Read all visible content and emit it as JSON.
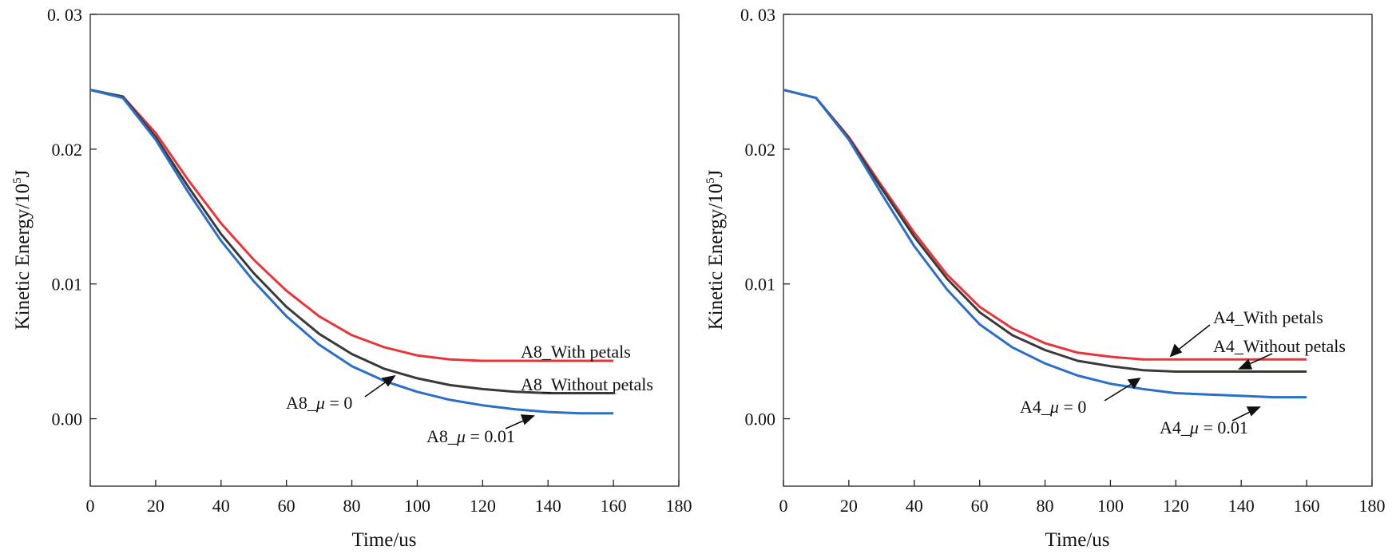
{
  "chart_data": [
    {
      "type": "line",
      "xlabel": "Time/us",
      "ylabel_base": "Kinetic Energy/10",
      "ylabel_exp": "5",
      "ylabel_unit": "J",
      "xlim": [
        0,
        180
      ],
      "ylim": [
        -0.005,
        0.03
      ],
      "xticks": [
        0,
        20,
        40,
        60,
        80,
        100,
        120,
        140,
        160,
        180
      ],
      "yticks": [
        0.0,
        0.01,
        0.02,
        0.03
      ],
      "ytick_labels": [
        "0.00",
        "0.01",
        "0.02",
        "0. 03"
      ],
      "x": [
        0,
        10,
        20,
        30,
        40,
        50,
        60,
        70,
        80,
        90,
        100,
        110,
        120,
        130,
        140,
        150,
        160
      ],
      "series": [
        {
          "name": "A8_With petals",
          "color": "#e8353a",
          "values": [
            0.0244,
            0.0239,
            0.0212,
            0.0177,
            0.0145,
            0.0118,
            0.0095,
            0.0076,
            0.0062,
            0.0053,
            0.0047,
            0.0044,
            0.0043,
            0.0043,
            0.0043,
            0.0043,
            0.0043
          ]
        },
        {
          "name": "A8_Without petals",
          "color": "#3a3a3a",
          "values": [
            0.0244,
            0.0239,
            0.0209,
            0.0172,
            0.0137,
            0.0108,
            0.0083,
            0.0063,
            0.0048,
            0.0037,
            0.003,
            0.0025,
            0.0022,
            0.002,
            0.0019,
            0.0019,
            0.0019
          ]
        },
        {
          "name": "A8_μ = 0.01",
          "color": "#2b6fc7",
          "values": [
            0.0244,
            0.0238,
            0.0207,
            0.0168,
            0.0132,
            0.0102,
            0.0076,
            0.0055,
            0.0039,
            0.0028,
            0.002,
            0.0014,
            0.001,
            0.0007,
            0.0005,
            0.0004,
            0.0004
          ]
        }
      ],
      "annotations": [
        {
          "text_prefix": "A8_",
          "text_mu": "μ",
          "text_suffix": " = 0"
        },
        {
          "text_prefix": "A8_",
          "text_mu": "μ",
          "text_suffix": " = 0.01"
        }
      ]
    },
    {
      "type": "line",
      "xlabel": "Time/us",
      "ylabel_base": "Kinetic Energy/10",
      "ylabel_exp": "5",
      "ylabel_unit": "J",
      "xlim": [
        0,
        180
      ],
      "ylim": [
        -0.005,
        0.03
      ],
      "xticks": [
        0,
        20,
        40,
        60,
        80,
        100,
        120,
        140,
        160,
        180
      ],
      "yticks": [
        0.0,
        0.01,
        0.02,
        0.03
      ],
      "ytick_labels": [
        "0.00",
        "0.01",
        "0.02",
        "0. 03"
      ],
      "x": [
        0,
        10,
        20,
        30,
        40,
        50,
        60,
        70,
        80,
        90,
        100,
        110,
        120,
        130,
        140,
        150,
        160
      ],
      "series": [
        {
          "name": "A4_With petals",
          "color": "#e8353a",
          "values": [
            0.0244,
            0.0238,
            0.0209,
            0.0173,
            0.0138,
            0.0107,
            0.0083,
            0.0067,
            0.0056,
            0.0049,
            0.0046,
            0.0044,
            0.0044,
            0.0044,
            0.0044,
            0.0044,
            0.0044
          ]
        },
        {
          "name": "A4_Without petals",
          "color": "#3a3a3a",
          "values": [
            0.0244,
            0.0238,
            0.0208,
            0.0171,
            0.0135,
            0.0104,
            0.0079,
            0.0062,
            0.0051,
            0.0043,
            0.0039,
            0.0036,
            0.0035,
            0.0035,
            0.0035,
            0.0035,
            0.0035
          ]
        },
        {
          "name": "A4_μ = 0.01",
          "color": "#2b6fc7",
          "values": [
            0.0244,
            0.0238,
            0.0207,
            0.0167,
            0.0128,
            0.0096,
            0.007,
            0.0053,
            0.0041,
            0.0032,
            0.0026,
            0.0022,
            0.0019,
            0.0018,
            0.0017,
            0.0016,
            0.0016
          ]
        }
      ],
      "annotations": [
        {
          "text_prefix": "A4_",
          "text_mu": "μ",
          "text_suffix": " = 0"
        },
        {
          "text_prefix": "A4_",
          "text_mu": "μ",
          "text_suffix": " = 0.01"
        }
      ]
    }
  ]
}
